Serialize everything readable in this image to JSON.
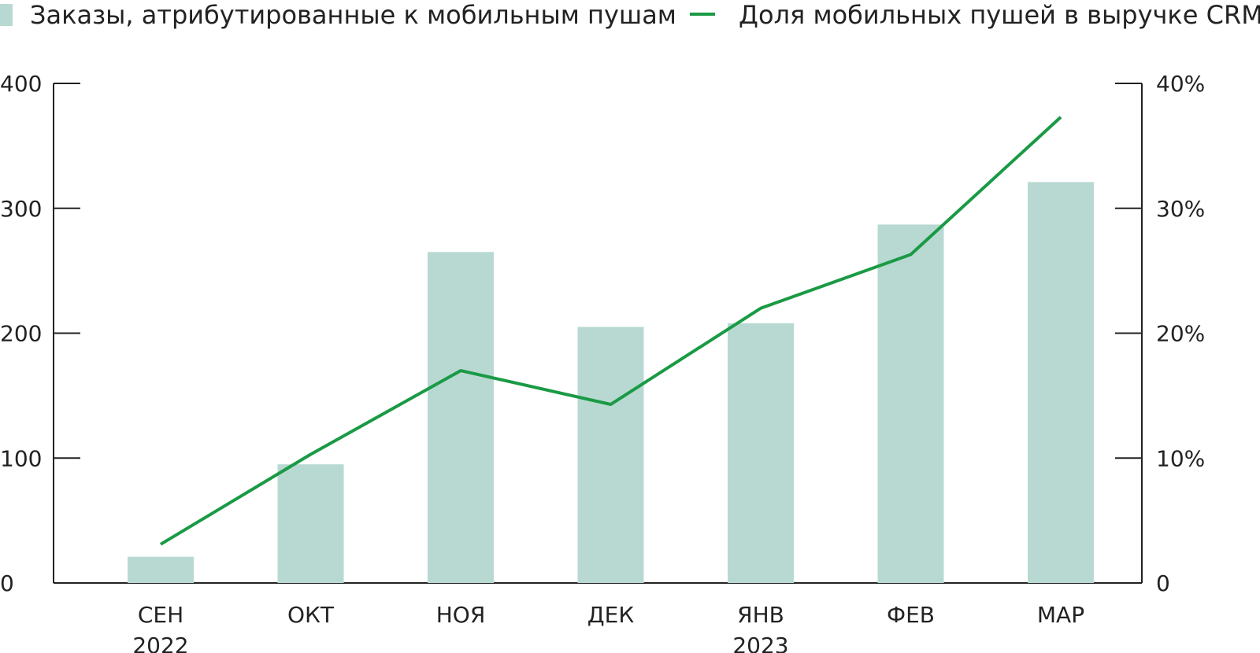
{
  "chart_data": {
    "type": "bar",
    "title": "",
    "categories": [
      "СЕН",
      "ОКТ",
      "НОЯ",
      "ДЕК",
      "ЯНВ",
      "ФЕВ",
      "МАР"
    ],
    "year_labels": [
      "2022",
      "",
      "",
      "",
      "2023",
      "",
      ""
    ],
    "series": [
      {
        "name": "Заказы, атрибутированные к мобильным пушам",
        "type": "bar",
        "axis": "left",
        "color": "#b8d9d2",
        "values": [
          21,
          95,
          265,
          205,
          208,
          287,
          321
        ]
      },
      {
        "name": "Доля мобильных пушей в выручке CRM",
        "type": "line",
        "axis": "right",
        "color": "#1a9a45",
        "values": [
          3.1,
          10.3,
          17.0,
          14.3,
          22.0,
          26.3,
          37.3
        ]
      }
    ],
    "y_left": {
      "ylim": [
        0,
        400
      ],
      "ticks": [
        0,
        100,
        200,
        300,
        400
      ],
      "tick_labels": [
        "0",
        "100",
        "200",
        "300",
        "400"
      ]
    },
    "y_right": {
      "ylim": [
        0,
        40
      ],
      "ticks": [
        0,
        10,
        20,
        30,
        40
      ],
      "tick_labels": [
        "0",
        "10%",
        "20%",
        "30%",
        "40%"
      ]
    },
    "grid": false,
    "legend_position": "top"
  }
}
